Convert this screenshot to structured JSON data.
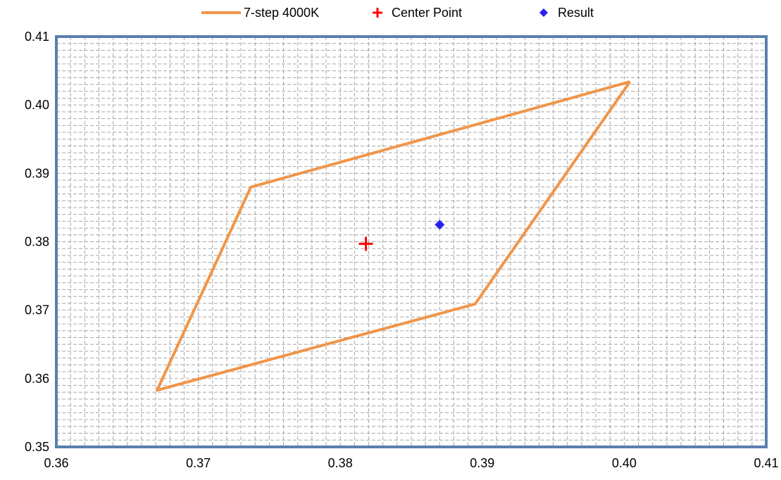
{
  "chart_data": {
    "type": "scatter",
    "title": "",
    "xlabel": "",
    "ylabel": "",
    "xlim": [
      0.36,
      0.41
    ],
    "ylim": [
      0.35,
      0.41
    ],
    "x_ticks": [
      0.36,
      0.37,
      0.38,
      0.39,
      0.4,
      0.41
    ],
    "y_ticks": [
      0.35,
      0.36,
      0.37,
      0.38,
      0.39,
      0.4,
      0.41
    ],
    "x_tick_labels": [
      "0.36",
      "0.37",
      "0.38",
      "0.39",
      "0.40",
      "0.41"
    ],
    "y_tick_labels": [
      "0.35",
      "0.36",
      "0.37",
      "0.38",
      "0.39",
      "0.40",
      "0.41"
    ],
    "minor_x_step": 0.001,
    "minor_y_step": 0.001,
    "grid": true,
    "legend_position": "top-center",
    "series": [
      {
        "name": "7-step 4000K",
        "kind": "line",
        "color": "#f0954a",
        "points": [
          [
            0.4004,
            0.4034
          ],
          [
            0.3737,
            0.388
          ],
          [
            0.3671,
            0.3583
          ],
          [
            0.3895,
            0.3709
          ],
          [
            0.4004,
            0.4034
          ]
        ]
      },
      {
        "name": "Center Point",
        "kind": "marker",
        "marker": "plus",
        "color": "#ff0000",
        "points": [
          [
            0.3818,
            0.3797
          ]
        ]
      },
      {
        "name": "Result",
        "kind": "marker",
        "marker": "diamond",
        "color": "#2a1ff2",
        "points": [
          [
            0.387,
            0.3825
          ]
        ]
      }
    ],
    "plot_border_color": "#5b7fae",
    "grid_color": "#a6a6a6"
  }
}
